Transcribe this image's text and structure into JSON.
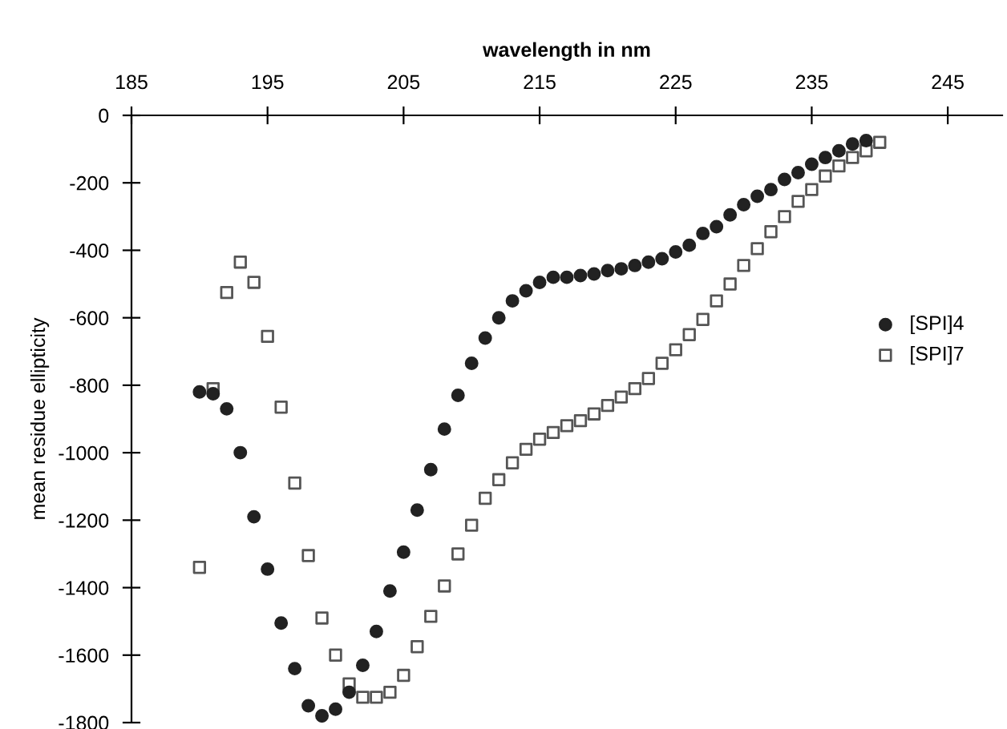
{
  "chart_data": {
    "type": "scatter",
    "xlabel": "wavelength in nm",
    "ylabel": "mean residue ellipticity",
    "xlim": [
      185,
      249
    ],
    "xticks": [
      185,
      195,
      205,
      215,
      225,
      235,
      245
    ],
    "ylim": [
      -1800,
      0
    ],
    "yticks": [
      0,
      -200,
      -400,
      -600,
      -800,
      -1000,
      -1200,
      -1400,
      -1600,
      -1800
    ],
    "grid": false,
    "legend": "right",
    "series": [
      {
        "name": "[SPI]4",
        "color": "#222222",
        "marker": "circle",
        "x": [
          190,
          191,
          192,
          193,
          194,
          195,
          196,
          197,
          198,
          199,
          200,
          201,
          202,
          203,
          204,
          205,
          206,
          207,
          208,
          209,
          210,
          211,
          212,
          213,
          214,
          215,
          216,
          217,
          218,
          219,
          220,
          221,
          222,
          223,
          224,
          225,
          226,
          227,
          228,
          229,
          230,
          231,
          232,
          233,
          234,
          235,
          236,
          237,
          238,
          239
        ],
        "values": [
          -820,
          -825,
          -870,
          -1000,
          -1190,
          -1345,
          -1505,
          -1640,
          -1750,
          -1780,
          -1760,
          -1710,
          -1630,
          -1530,
          -1410,
          -1295,
          -1170,
          -1050,
          -930,
          -830,
          -735,
          -660,
          -600,
          -550,
          -520,
          -495,
          -480,
          -480,
          -475,
          -470,
          -460,
          -455,
          -445,
          -435,
          -425,
          -405,
          -385,
          -350,
          -330,
          -295,
          -265,
          -240,
          -220,
          -190,
          -170,
          -145,
          -125,
          -105,
          -85,
          -75
        ]
      },
      {
        "name": "[SPI]7",
        "color": "#555555",
        "marker": "square",
        "x": [
          190,
          191,
          192,
          193,
          194,
          195,
          196,
          197,
          198,
          199,
          200,
          201,
          202,
          203,
          204,
          205,
          206,
          207,
          208,
          209,
          210,
          211,
          212,
          213,
          214,
          215,
          216,
          217,
          218,
          219,
          220,
          221,
          222,
          223,
          224,
          225,
          226,
          227,
          228,
          229,
          230,
          231,
          232,
          233,
          234,
          235,
          236,
          237,
          238,
          239,
          240
        ],
        "values": [
          -1340,
          -810,
          -525,
          -435,
          -495,
          -655,
          -865,
          -1090,
          -1305,
          -1490,
          -1600,
          -1685,
          -1725,
          -1725,
          -1710,
          -1660,
          -1575,
          -1485,
          -1395,
          -1300,
          -1215,
          -1135,
          -1080,
          -1030,
          -990,
          -960,
          -940,
          -920,
          -905,
          -885,
          -860,
          -835,
          -810,
          -780,
          -735,
          -695,
          -650,
          -605,
          -550,
          -500,
          -445,
          -395,
          -345,
          -300,
          -255,
          -220,
          -180,
          -150,
          -125,
          -105,
          -80
        ]
      }
    ]
  }
}
